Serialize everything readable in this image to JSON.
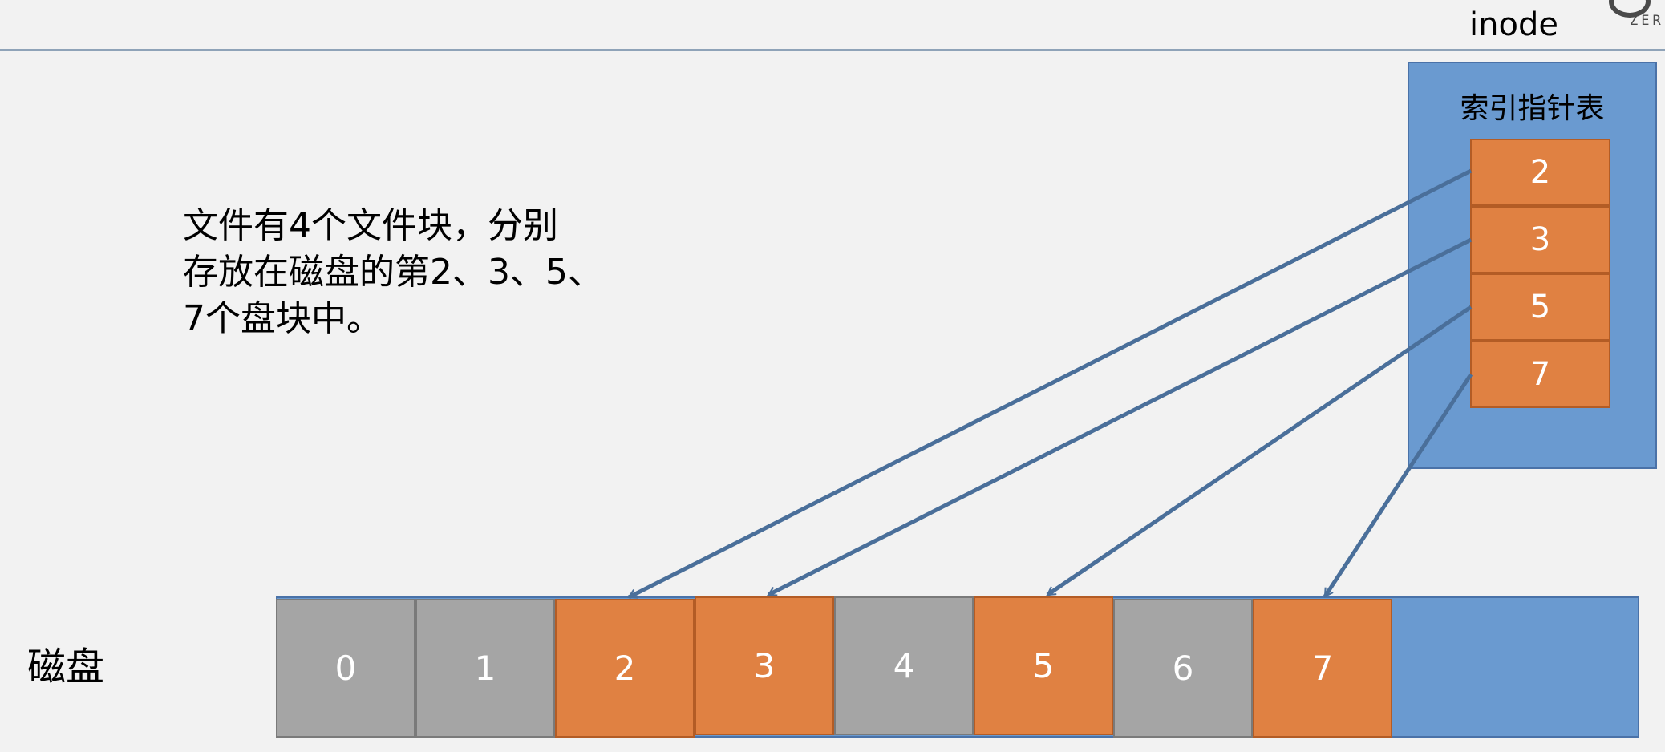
{
  "header": {
    "title": "inode",
    "logo_text": "ZER"
  },
  "description": "文件有4个文件块，分别\n存放在磁盘的第2、3、5、\n7个盘块中。",
  "disk": {
    "label": "磁盘",
    "blocks": [
      {
        "label": "0",
        "used": false
      },
      {
        "label": "1",
        "used": false
      },
      {
        "label": "2",
        "used": true
      },
      {
        "label": "3",
        "used": true
      },
      {
        "label": "4",
        "used": false
      },
      {
        "label": "5",
        "used": true
      },
      {
        "label": "6",
        "used": false
      },
      {
        "label": "7",
        "used": true
      }
    ]
  },
  "index_table": {
    "title": "索引指针表",
    "entries": [
      "2",
      "3",
      "5",
      "7"
    ]
  },
  "colors": {
    "background": "#f2f2f2",
    "inode_box": "#6a9ad0",
    "used_block": "#e08142",
    "free_block": "#a5a5a5",
    "arrow": "#4a6f9a"
  }
}
